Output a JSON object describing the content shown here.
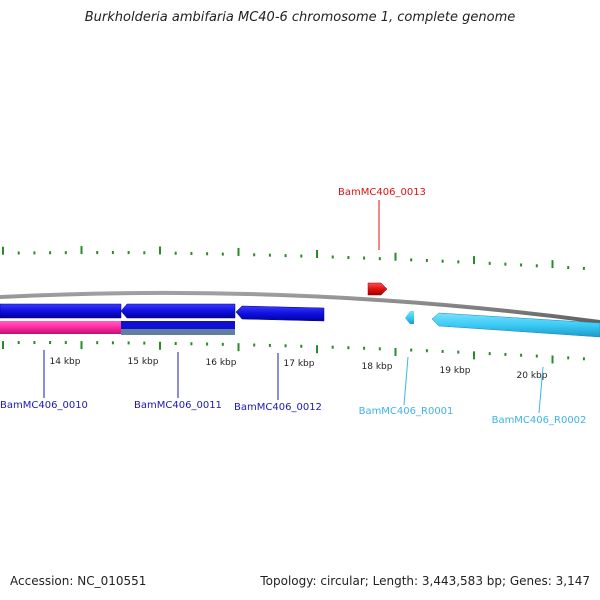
{
  "title": "Burkholderia ambifaria MC40-6 chromosome 1, complete genome",
  "footer": {
    "accession": "Accession: NC_010551",
    "summary": "Topology: circular; Length: 3,443,583 bp; Genes: 3,147"
  },
  "scale": {
    "tick_labels": [
      "14 kbp",
      "15 kbp",
      "16 kbp",
      "17 kbp",
      "18 kbp",
      "19 kbp",
      "20 kbp"
    ]
  },
  "genes": [
    {
      "id": "BamMC406_0010",
      "color": "#1a1ab4"
    },
    {
      "id": "BamMC406_0011",
      "color": "#1a1ab4"
    },
    {
      "id": "BamMC406_0012",
      "color": "#1a1ab4"
    },
    {
      "id": "BamMC406_0013",
      "color": "#e01010"
    },
    {
      "id": "BamMC406_R0001",
      "color": "#3cb4e6"
    },
    {
      "id": "BamMC406_R0002",
      "color": "#3cb4e6"
    }
  ],
  "colors": {
    "backbone": "#808080",
    "ticks": "#2a8a2a",
    "cds_forward": "#e01010",
    "cds_reverse": "#1010e0",
    "rna": "#3ccbf5",
    "pink_feature": "#ff2aa0"
  }
}
